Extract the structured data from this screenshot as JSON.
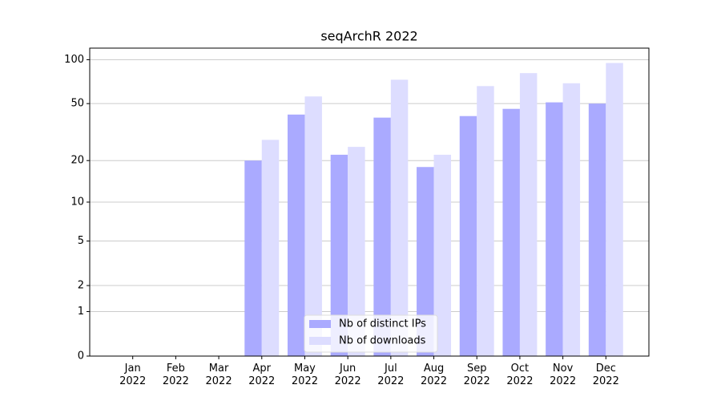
{
  "chart_data": {
    "type": "bar",
    "title": "seqArchR 2022",
    "categories": [
      "Jan\n2022",
      "Feb\n2022",
      "Mar\n2022",
      "Apr\n2022",
      "May\n2022",
      "Jun\n2022",
      "Jul\n2022",
      "Aug\n2022",
      "Sep\n2022",
      "Oct\n2022",
      "Nov\n2022",
      "Dec\n2022"
    ],
    "series": [
      {
        "name": "Nb of distinct IPs",
        "color": "#aaaaff",
        "values": [
          0,
          0,
          0,
          20,
          42,
          22,
          40,
          18,
          41,
          46,
          51,
          50
        ]
      },
      {
        "name": "Nb of downloads",
        "color": "#ddddff",
        "values": [
          0,
          0,
          0,
          28,
          56,
          25,
          73,
          22,
          66,
          81,
          69,
          95
        ]
      }
    ],
    "yscale": "log1p",
    "ylim": [
      0,
      120
    ],
    "yticks": [
      0,
      1,
      2,
      5,
      10,
      20,
      50,
      100
    ],
    "grid": true,
    "legend": "lower center"
  }
}
